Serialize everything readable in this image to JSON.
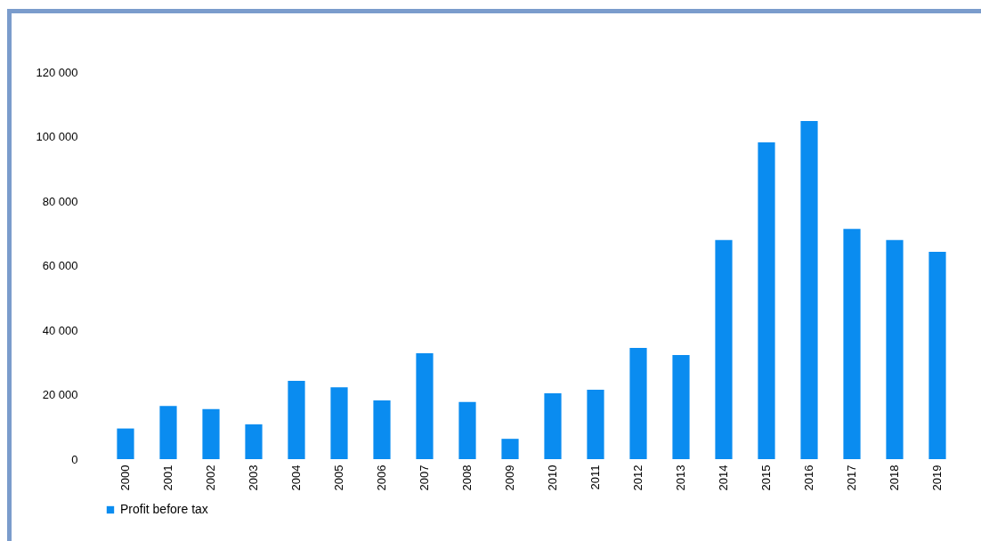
{
  "chart_data": {
    "type": "bar",
    "categories": [
      "2000",
      "2001",
      "2002",
      "2003",
      "2004",
      "2005",
      "2006",
      "2007",
      "2008",
      "2009",
      "2010",
      "2011",
      "2012",
      "2013",
      "2014",
      "2015",
      "2016",
      "2017",
      "2018",
      "2019"
    ],
    "series": [
      {
        "name": "Profit before tax",
        "color": "#0a8cf0",
        "values": [
          9500,
          16500,
          15500,
          10800,
          24300,
          22300,
          18200,
          32800,
          17700,
          6300,
          20400,
          21500,
          34500,
          32300,
          67900,
          98200,
          104800,
          71400,
          67900,
          64300
        ]
      }
    ],
    "ylim": [
      0,
      120000
    ],
    "yticks": [
      0,
      {
        "value": 20000,
        "label": "20 000"
      },
      {
        "value": 40000,
        "label": "40 000"
      },
      {
        "value": 60000,
        "label": "60 000"
      },
      {
        "value": 80000,
        "label": "80 000"
      },
      {
        "value": 100000,
        "label": "100 000"
      },
      {
        "value": 120000,
        "label": "120 000"
      }
    ],
    "grid": false,
    "legend": "bottom"
  }
}
